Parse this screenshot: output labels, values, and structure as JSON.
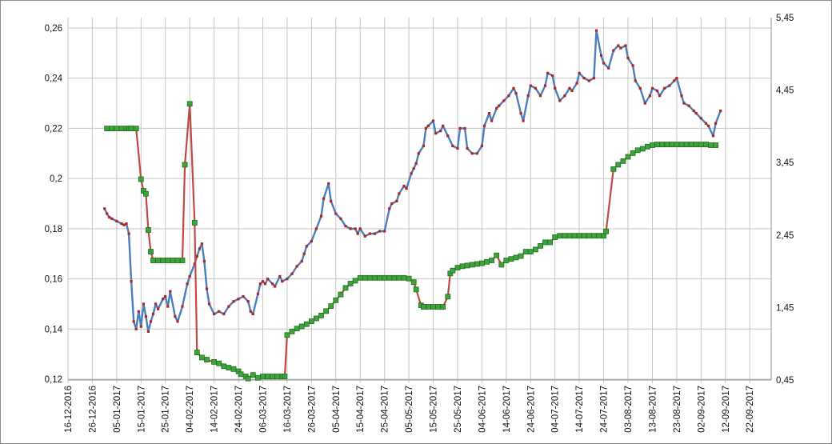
{
  "chart_style": {
    "background": "#ffffff",
    "figure_border": "#8c8c8c",
    "grid_color": "#c6c6c6",
    "axis_line_color": "#8c8c8c",
    "text_color": "#141414",
    "label_font_size": 11.5
  },
  "chart_data": {
    "type": "line",
    "title": "",
    "legend": null,
    "grid": true,
    "x_axis": {
      "unit": "date",
      "tick_interval_days": 10,
      "tick_labels": [
        "16-12-2016",
        "26-12-2016",
        "05-01-2017",
        "15-01-2017",
        "25-01-2017",
        "04-02-2017",
        "14-02-2017",
        "24-02-2017",
        "06-03-2017",
        "16-03-2017",
        "26-03-2017",
        "05-04-2017",
        "15-04-2017",
        "25-04-2017",
        "05-05-2017",
        "15-05-2017",
        "25-05-2017",
        "04-06-2017",
        "14-06-2017",
        "24-06-2017",
        "04-07-2017",
        "14-07-2017",
        "24-07-2017",
        "03-08-2017",
        "13-08-2017",
        "23-08-2017",
        "02-09-2017",
        "12-09-2017",
        "22-09-2017"
      ]
    },
    "left_axis": {
      "min": 0.12,
      "max": 0.26,
      "tick_values": [
        0.26,
        0.24,
        0.22,
        0.2,
        0.18,
        0.16,
        0.14,
        0.12
      ],
      "tick_labels": [
        "0,26",
        "0,24",
        "0,22",
        "0,2",
        "0,18",
        "0,16",
        "0,14",
        "0,12"
      ]
    },
    "right_axis": {
      "min": 0.45,
      "max": 5.45,
      "tick_values": [
        5.45,
        4.45,
        3.45,
        2.45,
        1.45,
        0.45
      ],
      "tick_labels": [
        "5,45",
        "4,45",
        "3,45",
        "2,45",
        "1,45",
        "0,45"
      ]
    },
    "series": [
      {
        "name": "blue-line-red-markers",
        "axis": "left",
        "color": "#4a7ebc",
        "line_width": 2.4,
        "marker": "square",
        "marker_color": "#b1251a",
        "marker_size": 3.2,
        "points": [
          [
            15,
            0.188
          ],
          [
            16,
            0.186
          ],
          [
            17,
            0.1845
          ],
          [
            18,
            0.184
          ],
          [
            20,
            0.183
          ],
          [
            22,
            0.182
          ],
          [
            23,
            0.1815
          ],
          [
            24,
            0.182
          ],
          [
            25,
            0.178
          ],
          [
            26,
            0.159
          ],
          [
            27,
            0.143
          ],
          [
            28,
            0.14
          ],
          [
            29,
            0.147
          ],
          [
            30,
            0.141
          ],
          [
            31,
            0.15
          ],
          [
            32,
            0.145
          ],
          [
            33,
            0.139
          ],
          [
            34,
            0.143
          ],
          [
            35,
            0.146
          ],
          [
            36,
            0.15
          ],
          [
            37,
            0.148
          ],
          [
            39,
            0.152
          ],
          [
            40,
            0.153
          ],
          [
            41,
            0.149
          ],
          [
            42,
            0.155
          ],
          [
            44,
            0.145
          ],
          [
            45,
            0.143
          ],
          [
            47,
            0.149
          ],
          [
            49,
            0.158
          ],
          [
            50,
            0.161
          ],
          [
            52,
            0.166
          ],
          [
            53,
            0.169
          ],
          [
            54,
            0.172
          ],
          [
            55,
            0.174
          ],
          [
            56,
            0.167
          ],
          [
            57,
            0.156
          ],
          [
            58,
            0.15
          ],
          [
            60,
            0.146
          ],
          [
            62,
            0.147
          ],
          [
            64,
            0.146
          ],
          [
            66,
            0.149
          ],
          [
            68,
            0.151
          ],
          [
            70,
            0.152
          ],
          [
            72,
            0.153
          ],
          [
            74,
            0.151
          ],
          [
            75,
            0.147
          ],
          [
            76,
            0.146
          ],
          [
            78,
            0.154
          ],
          [
            79,
            0.158
          ],
          [
            80,
            0.159
          ],
          [
            81,
            0.158
          ],
          [
            82,
            0.16
          ],
          [
            84,
            0.158
          ],
          [
            85,
            0.157
          ],
          [
            87,
            0.161
          ],
          [
            88,
            0.159
          ],
          [
            90,
            0.16
          ],
          [
            92,
            0.162
          ],
          [
            94,
            0.165
          ],
          [
            96,
            0.167
          ],
          [
            97,
            0.17
          ],
          [
            98,
            0.173
          ],
          [
            100,
            0.175
          ],
          [
            102,
            0.18
          ],
          [
            104,
            0.185
          ],
          [
            105,
            0.192
          ],
          [
            107,
            0.198
          ],
          [
            108,
            0.191
          ],
          [
            110,
            0.186
          ],
          [
            112,
            0.184
          ],
          [
            114,
            0.181
          ],
          [
            116,
            0.18
          ],
          [
            118,
            0.18
          ],
          [
            119,
            0.178
          ],
          [
            120,
            0.18
          ],
          [
            122,
            0.177
          ],
          [
            124,
            0.178
          ],
          [
            126,
            0.178
          ],
          [
            128,
            0.179
          ],
          [
            130,
            0.179
          ],
          [
            132,
            0.188
          ],
          [
            133,
            0.19
          ],
          [
            135,
            0.191
          ],
          [
            136,
            0.194
          ],
          [
            138,
            0.197
          ],
          [
            139,
            0.196
          ],
          [
            141,
            0.202
          ],
          [
            142,
            0.204
          ],
          [
            143,
            0.206
          ],
          [
            144,
            0.21
          ],
          [
            146,
            0.213
          ],
          [
            147,
            0.22
          ],
          [
            148,
            0.221
          ],
          [
            150,
            0.223
          ],
          [
            151,
            0.218
          ],
          [
            153,
            0.219
          ],
          [
            154,
            0.221
          ],
          [
            156,
            0.217
          ],
          [
            158,
            0.213
          ],
          [
            160,
            0.212
          ],
          [
            161,
            0.22
          ],
          [
            163,
            0.22
          ],
          [
            164,
            0.212
          ],
          [
            166,
            0.21
          ],
          [
            168,
            0.21
          ],
          [
            170,
            0.213
          ],
          [
            171,
            0.221
          ],
          [
            173,
            0.226
          ],
          [
            174,
            0.223
          ],
          [
            176,
            0.228
          ],
          [
            177,
            0.229
          ],
          [
            179,
            0.231
          ],
          [
            181,
            0.233
          ],
          [
            183,
            0.236
          ],
          [
            184,
            0.234
          ],
          [
            186,
            0.226
          ],
          [
            187,
            0.223
          ],
          [
            189,
            0.233
          ],
          [
            190,
            0.237
          ],
          [
            192,
            0.236
          ],
          [
            194,
            0.233
          ],
          [
            196,
            0.237
          ],
          [
            197,
            0.242
          ],
          [
            199,
            0.241
          ],
          [
            200,
            0.236
          ],
          [
            202,
            0.231
          ],
          [
            204,
            0.233
          ],
          [
            206,
            0.236
          ],
          [
            207,
            0.235
          ],
          [
            209,
            0.238
          ],
          [
            210,
            0.242
          ],
          [
            212,
            0.24
          ],
          [
            214,
            0.239
          ],
          [
            216,
            0.24
          ],
          [
            217,
            0.259
          ],
          [
            219,
            0.249
          ],
          [
            220,
            0.246
          ],
          [
            222,
            0.244
          ],
          [
            224,
            0.251
          ],
          [
            226,
            0.253
          ],
          [
            227,
            0.252
          ],
          [
            229,
            0.253
          ],
          [
            230,
            0.248
          ],
          [
            232,
            0.245
          ],
          [
            233,
            0.239
          ],
          [
            235,
            0.236
          ],
          [
            237,
            0.23
          ],
          [
            239,
            0.233
          ],
          [
            240,
            0.236
          ],
          [
            242,
            0.235
          ],
          [
            243,
            0.233
          ],
          [
            245,
            0.236
          ],
          [
            247,
            0.237
          ],
          [
            249,
            0.239
          ],
          [
            250,
            0.24
          ],
          [
            252,
            0.233
          ],
          [
            253,
            0.23
          ],
          [
            255,
            0.229
          ],
          [
            257,
            0.227
          ],
          [
            258,
            0.226
          ],
          [
            260,
            0.224
          ],
          [
            262,
            0.222
          ],
          [
            263,
            0.221
          ],
          [
            265,
            0.217
          ],
          [
            266,
            0.222
          ],
          [
            268,
            0.227
          ]
        ]
      },
      {
        "name": "red-line-green-markers",
        "axis": "right",
        "color": "#bf4944",
        "line_width": 2.2,
        "marker": "square",
        "marker_color": "#3fa33c",
        "marker_border": "#1e6e1e",
        "marker_size": 6,
        "points": [
          [
            16,
            3.92
          ],
          [
            18,
            3.92
          ],
          [
            20,
            3.92
          ],
          [
            22,
            3.92
          ],
          [
            24,
            3.92
          ],
          [
            25,
            3.92
          ],
          [
            26,
            3.92
          ],
          [
            28,
            3.92
          ],
          [
            30,
            3.22
          ],
          [
            31,
            3.06
          ],
          [
            32,
            3.02
          ],
          [
            33,
            2.52
          ],
          [
            34,
            2.22
          ],
          [
            35,
            2.1
          ],
          [
            37,
            2.1
          ],
          [
            39,
            2.1
          ],
          [
            41,
            2.1
          ],
          [
            43,
            2.1
          ],
          [
            45,
            2.1
          ],
          [
            47,
            2.1
          ],
          [
            48,
            3.42
          ],
          [
            50,
            4.26
          ],
          [
            52,
            2.62
          ],
          [
            53,
            0.83
          ],
          [
            55,
            0.76
          ],
          [
            57,
            0.73
          ],
          [
            60,
            0.7
          ],
          [
            62,
            0.68
          ],
          [
            64,
            0.64
          ],
          [
            66,
            0.62
          ],
          [
            68,
            0.6
          ],
          [
            70,
            0.57
          ],
          [
            71,
            0.53
          ],
          [
            73,
            0.5
          ],
          [
            74,
            0.47
          ],
          [
            76,
            0.52
          ],
          [
            78,
            0.48
          ],
          [
            80,
            0.5
          ],
          [
            82,
            0.5
          ],
          [
            84,
            0.5
          ],
          [
            86,
            0.5
          ],
          [
            88,
            0.5
          ],
          [
            89,
            0.5
          ],
          [
            90,
            1.07
          ],
          [
            92,
            1.12
          ],
          [
            94,
            1.16
          ],
          [
            96,
            1.19
          ],
          [
            98,
            1.22
          ],
          [
            100,
            1.26
          ],
          [
            102,
            1.3
          ],
          [
            104,
            1.34
          ],
          [
            106,
            1.4
          ],
          [
            108,
            1.47
          ],
          [
            110,
            1.55
          ],
          [
            112,
            1.63
          ],
          [
            114,
            1.72
          ],
          [
            116,
            1.78
          ],
          [
            118,
            1.82
          ],
          [
            120,
            1.86
          ],
          [
            122,
            1.86
          ],
          [
            124,
            1.86
          ],
          [
            126,
            1.86
          ],
          [
            128,
            1.86
          ],
          [
            130,
            1.86
          ],
          [
            132,
            1.86
          ],
          [
            134,
            1.86
          ],
          [
            136,
            1.86
          ],
          [
            138,
            1.86
          ],
          [
            140,
            1.85
          ],
          [
            142,
            1.8
          ],
          [
            143,
            1.7
          ],
          [
            145,
            1.48
          ],
          [
            146,
            1.46
          ],
          [
            148,
            1.46
          ],
          [
            150,
            1.46
          ],
          [
            152,
            1.46
          ],
          [
            154,
            1.46
          ],
          [
            156,
            1.6
          ],
          [
            157,
            1.92
          ],
          [
            158,
            1.96
          ],
          [
            160,
            2.0
          ],
          [
            162,
            2.02
          ],
          [
            164,
            2.03
          ],
          [
            166,
            2.04
          ],
          [
            168,
            2.05
          ],
          [
            170,
            2.06
          ],
          [
            172,
            2.08
          ],
          [
            174,
            2.1
          ],
          [
            176,
            2.17
          ],
          [
            178,
            2.04
          ],
          [
            180,
            2.1
          ],
          [
            182,
            2.12
          ],
          [
            184,
            2.14
          ],
          [
            186,
            2.16
          ],
          [
            188,
            2.22
          ],
          [
            190,
            2.22
          ],
          [
            192,
            2.25
          ],
          [
            194,
            2.3
          ],
          [
            196,
            2.35
          ],
          [
            198,
            2.35
          ],
          [
            200,
            2.42
          ],
          [
            202,
            2.44
          ],
          [
            204,
            2.44
          ],
          [
            206,
            2.44
          ],
          [
            208,
            2.44
          ],
          [
            210,
            2.44
          ],
          [
            212,
            2.44
          ],
          [
            214,
            2.44
          ],
          [
            216,
            2.44
          ],
          [
            218,
            2.44
          ],
          [
            220,
            2.44
          ],
          [
            221,
            2.5
          ],
          [
            224,
            3.36
          ],
          [
            226,
            3.42
          ],
          [
            228,
            3.47
          ],
          [
            230,
            3.53
          ],
          [
            232,
            3.58
          ],
          [
            234,
            3.62
          ],
          [
            236,
            3.64
          ],
          [
            238,
            3.67
          ],
          [
            240,
            3.69
          ],
          [
            242,
            3.7
          ],
          [
            244,
            3.7
          ],
          [
            246,
            3.7
          ],
          [
            248,
            3.7
          ],
          [
            250,
            3.7
          ],
          [
            252,
            3.7
          ],
          [
            254,
            3.7
          ],
          [
            256,
            3.7
          ],
          [
            258,
            3.7
          ],
          [
            260,
            3.7
          ],
          [
            262,
            3.7
          ],
          [
            264,
            3.69
          ],
          [
            266,
            3.69
          ]
        ]
      }
    ]
  }
}
